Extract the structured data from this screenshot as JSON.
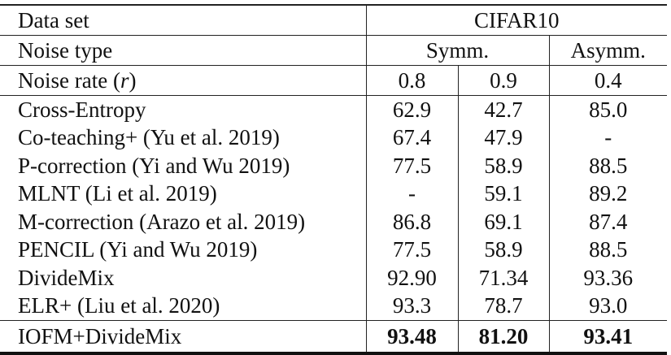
{
  "table": {
    "header": {
      "dataset_label": "Data set",
      "dataset_value": "CIFAR10",
      "noise_type_label": "Noise type",
      "noise_type_symm": "Symm.",
      "noise_type_asymm": "Asymm.",
      "noise_rate_label_prefix": "Noise rate (",
      "noise_rate_symbol": "r",
      "noise_rate_label_suffix": ")",
      "noise_rates": [
        "0.8",
        "0.9",
        "0.4"
      ]
    },
    "rows": [
      {
        "method": "Cross-Entropy",
        "values": [
          "62.9",
          "42.7",
          "85.0"
        ]
      },
      {
        "method": "Co-teaching+ (Yu et al. 2019)",
        "values": [
          "67.4",
          "47.9",
          "-"
        ]
      },
      {
        "method": "P-correction (Yi and Wu 2019)",
        "values": [
          "77.5",
          "58.9",
          "88.5"
        ]
      },
      {
        "method": "MLNT (Li et al. 2019)",
        "values": [
          "-",
          "59.1",
          "89.2"
        ]
      },
      {
        "method": "M-correction (Arazo et al. 2019)",
        "values": [
          "86.8",
          "69.1",
          "87.4"
        ]
      },
      {
        "method": "PENCIL (Yi and Wu 2019)",
        "values": [
          "77.5",
          "58.9",
          "88.5"
        ]
      },
      {
        "method": "DivideMix",
        "values": [
          "92.90",
          "71.34",
          "93.36"
        ]
      },
      {
        "method": "ELR+ (Liu et al. 2020)",
        "values": [
          "93.3",
          "78.7",
          "93.0"
        ]
      }
    ],
    "final_row": {
      "method": "IOFM+DivideMix",
      "values": [
        "93.48",
        "81.20",
        "93.41"
      ],
      "bold": true
    }
  }
}
